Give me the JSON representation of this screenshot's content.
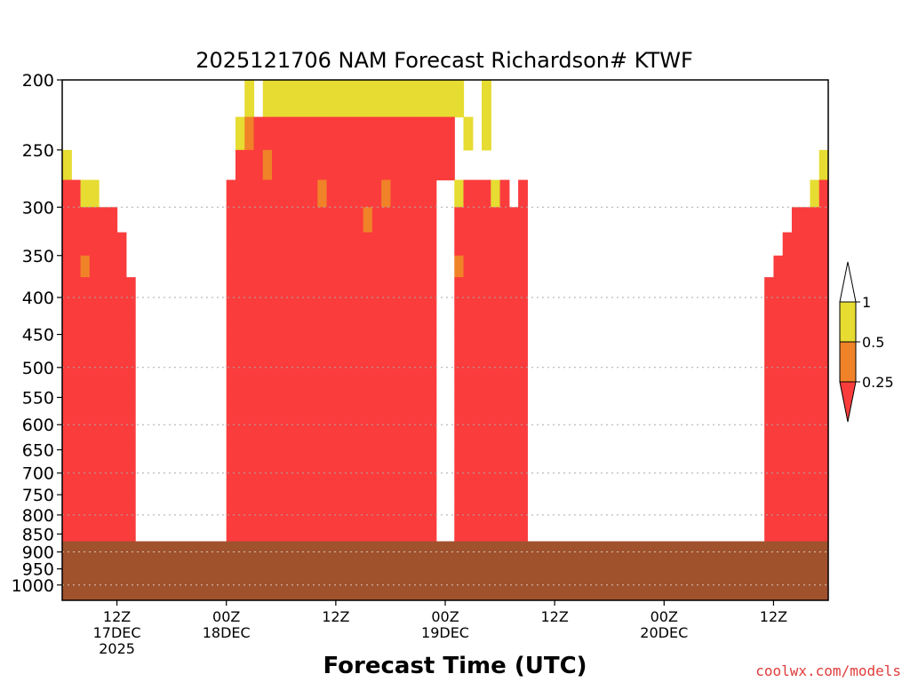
{
  "chart_data": {
    "type": "heatmap",
    "title": "2025121706 NAM Forecast Richardson# KTWF",
    "xlabel": "Forecast Time (UTC)",
    "ylabel": "",
    "yscale": "log",
    "ylim": [
      1050,
      200
    ],
    "xlim": [
      6,
      90
    ],
    "yticks": [
      200,
      250,
      300,
      350,
      400,
      450,
      500,
      550,
      600,
      650,
      700,
      750,
      800,
      850,
      900,
      950,
      1000
    ],
    "gridlines_at": [
      300,
      400,
      500,
      600,
      700,
      800,
      900,
      1000
    ],
    "grid": "dotted horizontal",
    "xticks": [
      {
        "hour": 12,
        "lines": [
          "12Z",
          "17DEC",
          "2025"
        ]
      },
      {
        "hour": 24,
        "lines": [
          "00Z",
          "18DEC"
        ]
      },
      {
        "hour": 36,
        "lines": [
          "12Z"
        ]
      },
      {
        "hour": 48,
        "lines": [
          "00Z",
          "19DEC"
        ]
      },
      {
        "hour": 60,
        "lines": [
          "12Z"
        ]
      },
      {
        "hour": 72,
        "lines": [
          "00Z",
          "20DEC"
        ]
      },
      {
        "hour": 84,
        "lines": [
          "12Z"
        ]
      }
    ],
    "legend": {
      "placement": "right",
      "labels": [
        "1",
        "0.5",
        "0.25"
      ],
      "bins": [
        {
          "range": ">1",
          "color": "#ffffff"
        },
        {
          "range": "0.5-1",
          "color": "#e6dc32"
        },
        {
          "range": "0.25-0.5",
          "color": "#f08228"
        },
        {
          "range": "<0.25",
          "color": "#fa3c3c"
        }
      ]
    },
    "levels": [
      200,
      225,
      250,
      275,
      300,
      325,
      350,
      375,
      400,
      425,
      450,
      475,
      500,
      525,
      550,
      575,
      600,
      625,
      650,
      675,
      700,
      725,
      750,
      775,
      800,
      812,
      825,
      837,
      850,
      862
    ],
    "terrain": {
      "surface_pressure": 870,
      "color": "#a0522d"
    },
    "hour_step": 1,
    "ri_category_rows": [
      "000000000000000000001011111111111111111111110010000000000000000000000000000000000000",
      "000000000000000000012333333333333333333333301010000000000000000000000000000000000000",
      "100000000000000000033323333333333333333333300000000000000000000000000000000000000001",
      "331100000000000000333333333323333332333330013331303000000000000000000000000000000013",
      "333333000000000000333333333333333233333330033333333000000000000000000000000000003333",
      "333333300000000000333333333333333333333330033333333000000000000000000000000000033333",
      "332333300000000000333333333333333333333330023333333000000000000000000000000000333333",
      "333333330000000000333333333333333333333330033333333000000000000000000000000003333333",
      "333333330000000000333333333333333333333330033333333000000000000000000000000003333333",
      "333333330000000000333333333333333333333330033333333000000000000000000000000003333333",
      "333333330000000000333333333333333333333330033333333000000000000000000000000003333333",
      "333333330000000000333333333333333333333330033333333000000000000000000000000003333333",
      "333333330000000000333333333333333333333330033333333000000000000000000000000003333333",
      "333333330000000000333333333333333333333330033333333000000000000000000000000003333333",
      "333333330000000000333333333333333333333330033333333000000000000000000000000003333333",
      "333333330000000000333333333333333333333330033333333000000000000000000000000003333333",
      "333333330000000000333333333333333333333330033333333000000000000000000000000003333333",
      "333333330000000000333333333333333333333330033333333000000000000000000000000003333333",
      "333333330000000000333333333333333333333330033333333000000000000000000000000003333333",
      "333333330000000000333333333333333333333330033333333000000000000000000000000003333333",
      "333333330000000000333333333333333333333330033333333000000000000000000000000003333333",
      "333333330000000000333333333333333333333330033333333000000000000000000000000003333333",
      "333333330000000000333333333333333333333330033333333000000000000000000000000003333333",
      "333333330000000000333333333333333333333330033333333000000000000000000000000003333333",
      "333333330000000000333333333333333333333330033333333000000000000000000000000003333333",
      "333333330000000000333333333333333333333330033333333000000000000000000000000003333333",
      "333333330000000000333333333333333333333330033333333000000000000000000000000003333333",
      "333333330000000000333333333333333333333330033333333000000000000000000000000003333333",
      "333333330000000000333333333333333333333330033333333000000000000000000000000003333333",
      "333333330000000000333333333333333333333330033333333000000000000000000000000003333333"
    ],
    "ri_category_key": "0 = >1, 1 = 0.5-1, 2 = 0.25-0.5, 3 = <0.25"
  },
  "footer": {
    "credit": "coolwx.com/models"
  }
}
